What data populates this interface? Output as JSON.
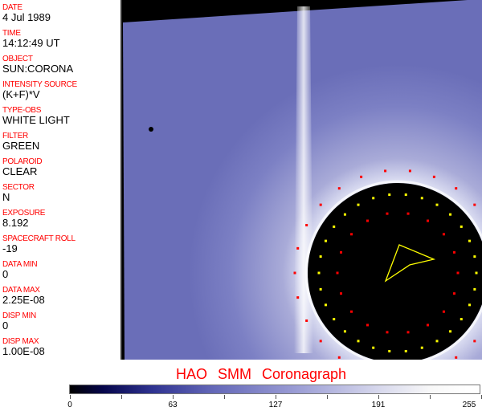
{
  "fields": [
    {
      "label": "DATE",
      "value": "4 Jul 1989"
    },
    {
      "label": "TIME",
      "value": "14:12:49 UT"
    },
    {
      "label": "OBJECT",
      "value": "SUN:CORONA"
    },
    {
      "label": "INTENSITY SOURCE",
      "value": "(K+F)*V"
    },
    {
      "label": "TYPE-OBS",
      "value": "WHITE LIGHT"
    },
    {
      "label": "FILTER",
      "value": "GREEN"
    },
    {
      "label": "POLAROID",
      "value": "CLEAR"
    },
    {
      "label": "SECTOR",
      "value": "N"
    },
    {
      "label": "EXPOSURE",
      "value": "8.192"
    },
    {
      "label": "SPACECRAFT ROLL",
      "value": "-19"
    },
    {
      "label": "DATA MIN",
      "value": "0"
    },
    {
      "label": "DATA MAX",
      "value": "2.25E-08"
    },
    {
      "label": "DISP MIN",
      "value": "0"
    },
    {
      "label": "DISP MAX",
      "value": "1.00E-08"
    }
  ],
  "title": "HAO  SMM Coronagraph",
  "colorbar": {
    "ticks": [
      "0",
      "63",
      "127",
      "191",
      "255"
    ],
    "colors": {
      "low": "#000000",
      "mid": "#6468b8",
      "high": "#ffffff"
    }
  }
}
